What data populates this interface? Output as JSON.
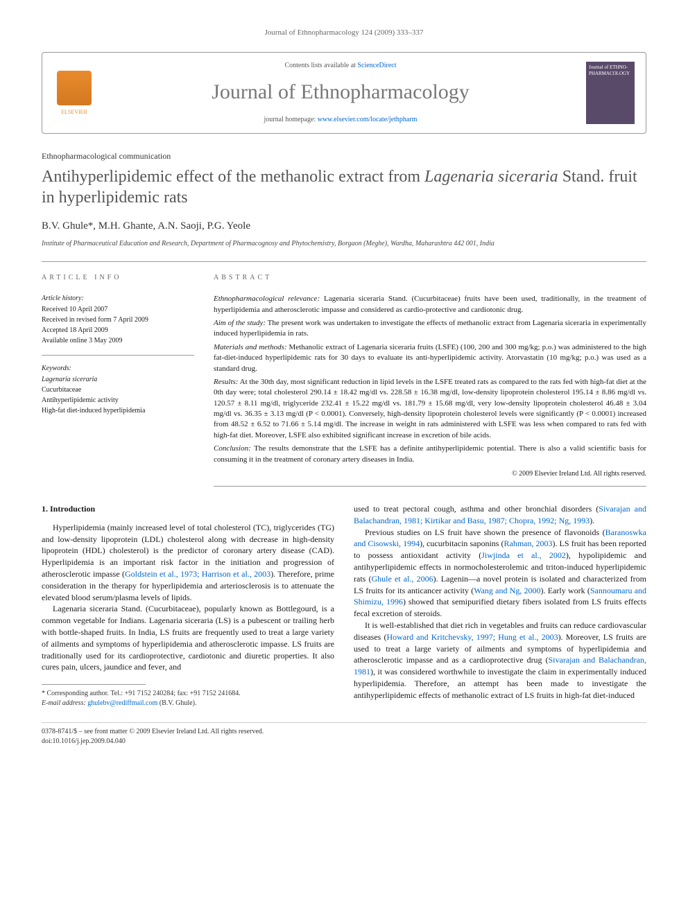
{
  "running_header": "Journal of Ethnopharmacology 124 (2009) 333–337",
  "masthead": {
    "contents_prefix": "Contents lists available at ",
    "contents_link": "ScienceDirect",
    "journal_name": "Journal of Ethnopharmacology",
    "homepage_prefix": "journal homepage: ",
    "homepage_url": "www.elsevier.com/locate/jethpharm",
    "publisher_label": "ELSEVIER",
    "cover_title": "Journal of ETHNO-PHARMACOLOGY"
  },
  "article_type": "Ethnopharmacological communication",
  "title_plain_pre": "Antihyperlipidemic effect of the methanolic extract from ",
  "title_italic": "Lagenaria siceraria",
  "title_plain_post": " Stand. fruit in hyperlipidemic rats",
  "authors": "B.V. Ghule*, M.H. Ghante, A.N. Saoji, P.G. Yeole",
  "affiliation": "Institute of Pharmaceutical Education and Research, Department of Pharmacognosy and Phytochemistry, Borgaon (Meghe), Wardha, Maharashtra 442 001, India",
  "info_labels": {
    "article_info": "ARTICLE INFO",
    "abstract": "ABSTRACT"
  },
  "history": {
    "heading": "Article history:",
    "received": "Received 10 April 2007",
    "revised": "Received in revised form 7 April 2009",
    "accepted": "Accepted 18 April 2009",
    "online": "Available online 3 May 2009"
  },
  "keywords": {
    "heading": "Keywords:",
    "k1": "Lagenaria siceraria",
    "k2": "Cucurbitaceae",
    "k3": "Antihyperlipidemic activity",
    "k4": "High-fat diet-induced hyperlipidemia"
  },
  "abstract": {
    "p1_lead": "Ethnopharmacological relevance:",
    "p1": " Lagenaria siceraria Stand. (Cucurbitaceae) fruits have been used, traditionally, in the treatment of hyperlipidemia and atherosclerotic impasse and considered as cardio-protective and cardiotonic drug.",
    "p2_lead": "Aim of the study:",
    "p2": " The present work was undertaken to investigate the effects of methanolic extract from Lagenaria siceraria in experimentally induced hyperlipidemia in rats.",
    "p3_lead": "Materials and methods:",
    "p3": " Methanolic extract of Lagenaria siceraria fruits (LSFE) (100, 200 and 300 mg/kg; p.o.) was administered to the high fat-diet-induced hyperlipidemic rats for 30 days to evaluate its anti-hyperlipidemic activity. Atorvastatin (10 mg/kg; p.o.) was used as a standard drug.",
    "p4_lead": "Results:",
    "p4": " At the 30th day, most significant reduction in lipid levels in the LSFE treated rats as compared to the rats fed with high-fat diet at the 0th day were; total cholesterol 290.14 ± 18.42 mg/dl vs. 228.58 ± 16.38 mg/dl, low-density lipoprotein cholesterol 195.14 ± 8.86 mg/dl vs. 120.57 ± 8.11 mg/dl, triglyceride 232.41 ± 15.22 mg/dl vs. 181.79 ± 15.68 mg/dl, very low-density lipoprotein cholesterol 46.48 ± 3.04 mg/dl vs. 36.35 ± 3.13 mg/dl (P < 0.0001). Conversely, high-density lipoprotein cholesterol levels were significantly (P < 0.0001) increased from 48.52 ± 6.52 to 71.66 ± 5.14 mg/dl. The increase in weight in rats administered with LSFE was less when compared to rats fed with high-fat diet. Moreover, LSFE also exhibited significant increase in excretion of bile acids.",
    "p5_lead": "Conclusion:",
    "p5": " The results demonstrate that the LSFE has a definite antihyperlipidemic potential. There is also a valid scientific basis for consuming it in the treatment of coronary artery diseases in India.",
    "copyright": "© 2009 Elsevier Ireland Ltd. All rights reserved."
  },
  "body": {
    "heading": "1. Introduction",
    "left": {
      "p1a": "Hyperlipidemia (mainly increased level of total cholesterol (TC), triglycerides (TG) and low-density lipoprotein (LDL) cholesterol along with decrease in high-density lipoprotein (HDL) cholesterol) is the predictor of coronary artery disease (CAD). Hyperlipidemia is an important risk factor in the initiation and progression of atherosclerotic impasse (",
      "p1_link1": "Goldstein et al., 1973; Harrison et al., 2003",
      "p1b": "). Therefore, prime consideration in the therapy for hyperlipidemia and arteriosclerosis is to attenuate the elevated blood serum/plasma levels of lipids.",
      "p2a": "Lagenaria siceraria Stand. (Cucurbitaceae), popularly known as Bottlegourd, is a common vegetable for Indians. Lagenaria siceraria (LS) is a pubescent or trailing herb with bottle-shaped fruits. In India, LS fruits are frequently used to treat a large variety of ailments and symptoms of hyperlipidemia and atherosclerotic impasse. LS fruits are traditionally used for its cardioprotective, cardiotonic and diuretic properties. It also cures pain, ulcers, jaundice and fever, and"
    },
    "right": {
      "p1a": "used to treat pectoral cough, asthma and other bronchial disorders (",
      "p1_link1": "Sivarajan and Balachandran, 1981; Kirtikar and Basu, 1987; Chopra, 1992; Ng, 1993",
      "p1b": ").",
      "p2a": "Previous studies on LS fruit have shown the presence of flavonoids (",
      "p2_link1": "Baranoswka and Cisowski, 1994",
      "p2b": "), cucurbitacin saponins (",
      "p2_link2": "Rahman, 2003",
      "p2c": "). LS fruit has been reported to possess antioxidant activity (",
      "p2_link3": "Jiwjinda et al., 2002",
      "p2d": "), hypolipidemic and antihyperlipidemic effects in normocholesterolemic and triton-induced hyperlipidemic rats (",
      "p2_link4": "Ghule et al., 2006",
      "p2e": "). Lagenin—a novel protein is isolated and characterized from LS fruits for its anticancer activity (",
      "p2_link5": "Wang and Ng, 2000",
      "p2f": "). Early work (",
      "p2_link6": "Sannoumaru and Shimizu, 1996",
      "p2g": ") showed that semipurified dietary fibers isolated from LS fruits effects fecal excretion of steroids.",
      "p3a": "It is well-established that diet rich in vegetables and fruits can reduce cardiovascular diseases (",
      "p3_link1": "Howard and Kritchevsky, 1997; Hung et al., 2003",
      "p3b": "). Moreover, LS fruits are used to treat a large variety of ailments and symptoms of hyperlipidemia and atherosclerotic impasse and as a cardioprotective drug (",
      "p3_link2": "Sivarajan and Balachandran, 1981",
      "p3c": "), it was considered worthwhile to investigate the claim in experimentally induced hyperlipidemia. Therefore, an attempt has been made to investigate the antihyperlipidemic effects of methanolic extract of LS fruits in high-fat diet-induced"
    }
  },
  "footnote": {
    "corr": "* Corresponding author. Tel.: +91 7152 240284; fax: +91 7152 241684.",
    "email_label": "E-mail address: ",
    "email": "ghulebv@rediffmail.com",
    "email_suffix": " (B.V. Ghule)."
  },
  "bottom": {
    "left1": "0378-8741/$ – see front matter © 2009 Elsevier Ireland Ltd. All rights reserved.",
    "left2": "doi:10.1016/j.jep.2009.04.040"
  },
  "colors": {
    "link": "#0066cc",
    "accent": "#e98b2c",
    "rule": "#999999",
    "muted": "#666666",
    "cover_bg": "#5a4a6a"
  }
}
